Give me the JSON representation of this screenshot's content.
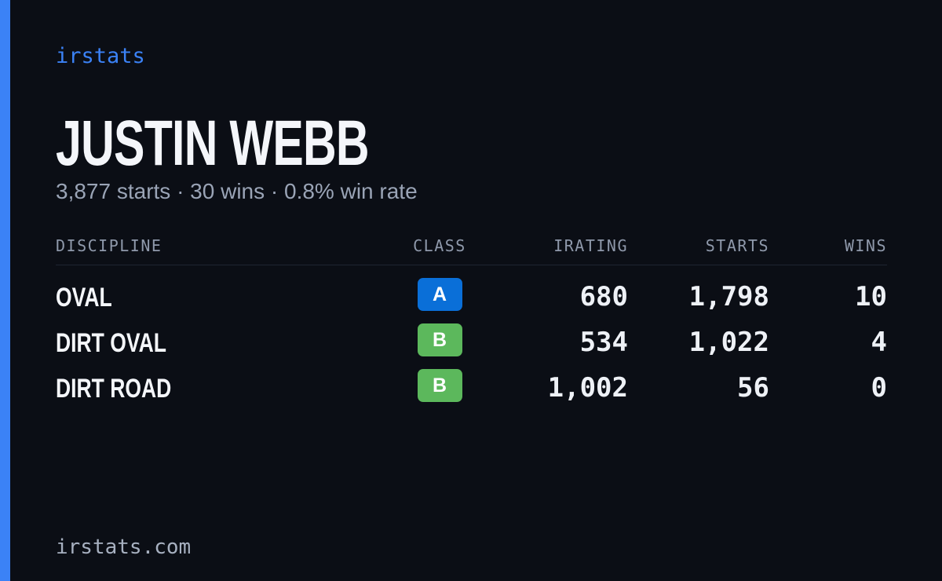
{
  "brand": "irstats",
  "driver": {
    "name": "JUSTIN WEBB",
    "summary": "3,877 starts · 30 wins · 0.8% win rate"
  },
  "table": {
    "headers": [
      "DISCIPLINE",
      "CLASS",
      "IRATING",
      "STARTS",
      "WINS"
    ],
    "rows": [
      {
        "discipline": "OVAL",
        "class": "A",
        "class_color": "#0a6fd8",
        "irating": "680",
        "starts": "1,798",
        "wins": "10"
      },
      {
        "discipline": "DIRT OVAL",
        "class": "B",
        "class_color": "#5cb85c",
        "irating": "534",
        "starts": "1,022",
        "wins": "4"
      },
      {
        "discipline": "DIRT ROAD",
        "class": "B",
        "class_color": "#5cb85c",
        "irating": "1,002",
        "starts": "56",
        "wins": "0"
      }
    ]
  },
  "footer": "irstats.com"
}
